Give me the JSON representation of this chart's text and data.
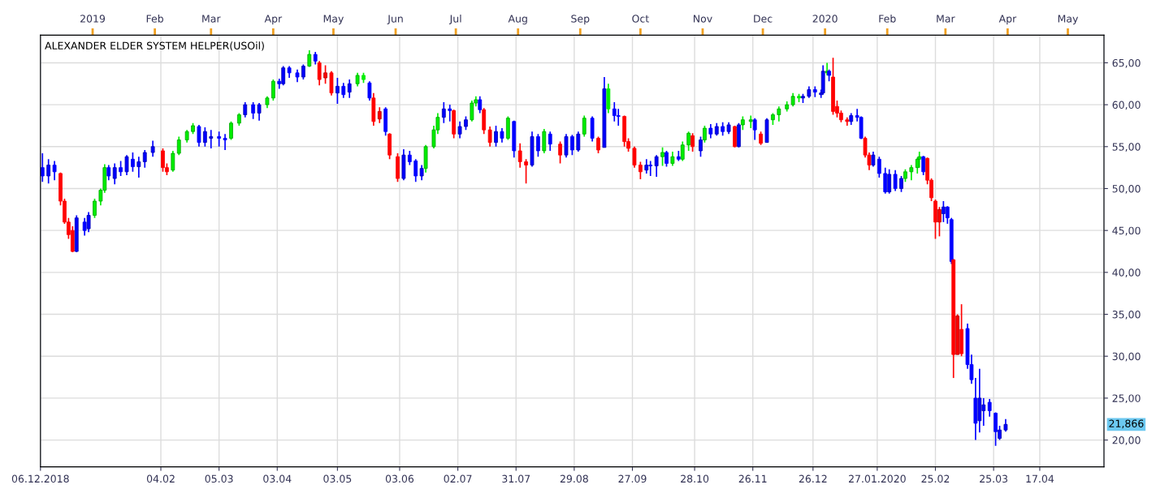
{
  "chart_data": {
    "type": "candlestick",
    "title": "ALEXANDER ELDER SYSTEM HELPER(USOil)",
    "x": [
      "2018-12-07",
      "2018-12-10",
      "2018-12-13",
      "2018-12-16",
      "2018-12-18",
      "2018-12-20",
      "2018-12-22",
      "2018-12-24",
      "2018-12-28",
      "2018-12-30",
      "2019-01-02",
      "2019-01-05",
      "2019-01-07",
      "2019-01-09",
      "2019-01-12",
      "2019-01-15",
      "2019-01-18",
      "2019-01-21",
      "2019-01-24",
      "2019-01-27",
      "2019-01-31",
      "2019-02-05",
      "2019-02-07",
      "2019-02-10",
      "2019-02-13",
      "2019-02-17",
      "2019-02-20",
      "2019-02-23",
      "2019-02-26",
      "2019-03-01",
      "2019-03-05",
      "2019-03-08",
      "2019-03-11",
      "2019-03-15",
      "2019-03-18",
      "2019-03-22",
      "2019-03-25",
      "2019-03-29",
      "2019-04-01",
      "2019-04-04",
      "2019-04-06",
      "2019-04-09",
      "2019-04-13",
      "2019-04-16",
      "2019-04-19",
      "2019-04-22",
      "2019-04-24",
      "2019-04-27",
      "2019-04-30",
      "2019-05-03",
      "2019-05-06",
      "2019-05-09",
      "2019-05-13",
      "2019-05-16",
      "2019-05-19",
      "2019-05-21",
      "2019-05-24",
      "2019-05-27",
      "2019-05-29",
      "2019-06-02",
      "2019-06-05",
      "2019-06-08",
      "2019-06-11",
      "2019-06-14",
      "2019-06-16",
      "2019-06-20",
      "2019-06-22",
      "2019-06-25",
      "2019-06-28",
      "2019-06-30",
      "2019-07-03",
      "2019-07-06",
      "2019-07-09",
      "2019-07-11",
      "2019-07-13",
      "2019-07-15",
      "2019-07-18",
      "2019-07-21",
      "2019-07-24",
      "2019-07-27",
      "2019-07-30",
      "2019-08-02",
      "2019-08-05",
      "2019-08-08",
      "2019-08-11",
      "2019-08-14",
      "2019-08-17",
      "2019-08-22",
      "2019-08-25",
      "2019-08-28",
      "2019-08-31",
      "2019-09-03",
      "2019-09-07",
      "2019-09-10",
      "2019-09-13",
      "2019-09-15",
      "2019-09-18",
      "2019-09-20",
      "2019-09-23",
      "2019-09-25",
      "2019-09-28",
      "2019-10-01",
      "2019-10-04",
      "2019-10-06",
      "2019-10-09",
      "2019-10-12",
      "2019-10-14",
      "2019-10-17",
      "2019-10-20",
      "2019-10-22",
      "2019-10-25",
      "2019-10-27",
      "2019-10-31",
      "2019-11-02",
      "2019-11-05",
      "2019-11-08",
      "2019-11-11",
      "2019-11-14",
      "2019-11-17",
      "2019-11-19",
      "2019-11-21",
      "2019-11-25",
      "2019-11-27",
      "2019-11-30",
      "2019-12-03",
      "2019-12-06",
      "2019-12-09",
      "2019-12-13",
      "2019-12-16",
      "2019-12-19",
      "2019-12-21",
      "2019-12-24",
      "2019-12-27",
      "2019-12-30",
      "2019-12-31",
      "2020-01-02",
      "2020-01-03",
      "2020-01-05",
      "2020-01-07",
      "2020-01-09",
      "2020-01-12",
      "2020-01-14",
      "2020-01-17",
      "2020-01-19",
      "2020-01-21",
      "2020-01-23",
      "2020-01-25",
      "2020-01-28",
      "2020-01-31",
      "2020-02-02",
      "2020-02-05",
      "2020-02-08",
      "2020-02-10",
      "2020-02-13",
      "2020-02-16",
      "2020-02-17",
      "2020-02-19",
      "2020-02-21",
      "2020-02-23",
      "2020-02-25",
      "2020-02-27",
      "2020-02-29",
      "2020-03-02",
      "2020-03-04",
      "2020-03-05",
      "2020-03-07",
      "2020-03-09",
      "2020-03-12",
      "2020-03-14",
      "2020-03-16",
      "2020-03-18",
      "2020-03-20",
      "2020-03-23",
      "2020-03-26",
      "2020-03-28",
      "2020-03-31"
    ],
    "ohlc": [
      [
        52.5,
        54.2,
        50.8,
        51.5
      ],
      [
        51.5,
        53.5,
        50.6,
        52.8
      ],
      [
        52.8,
        53.3,
        51.0,
        52.0
      ],
      [
        51.8,
        51.9,
        48.0,
        48.5
      ],
      [
        48.5,
        48.8,
        45.8,
        46.0
      ],
      [
        46.0,
        46.5,
        44.0,
        44.5
      ],
      [
        45.0,
        45.5,
        42.4,
        42.5
      ],
      [
        42.5,
        46.8,
        42.4,
        46.5
      ],
      [
        46.0,
        46.5,
        44.4,
        45.0
      ],
      [
        45.2,
        47.2,
        44.8,
        46.8
      ],
      [
        46.8,
        48.8,
        46.5,
        48.5
      ],
      [
        48.5,
        50.0,
        48.0,
        49.8
      ],
      [
        49.8,
        52.9,
        49.5,
        52.5
      ],
      [
        52.5,
        52.8,
        51.0,
        51.5
      ],
      [
        51.2,
        53.0,
        50.5,
        52.5
      ],
      [
        52.5,
        53.3,
        51.5,
        52.0
      ],
      [
        52.0,
        54.0,
        51.6,
        53.8
      ],
      [
        53.5,
        54.3,
        52.0,
        52.6
      ],
      [
        52.6,
        53.8,
        51.3,
        53.2
      ],
      [
        53.2,
        54.6,
        52.5,
        54.3
      ],
      [
        54.3,
        55.7,
        53.8,
        55.0
      ],
      [
        54.5,
        54.8,
        52.0,
        52.5
      ],
      [
        52.5,
        53.0,
        51.6,
        52.0
      ],
      [
        52.2,
        54.5,
        52.0,
        54.2
      ],
      [
        54.2,
        56.2,
        54.0,
        55.8
      ],
      [
        55.8,
        57.0,
        55.5,
        56.8
      ],
      [
        56.8,
        57.8,
        56.5,
        57.5
      ],
      [
        57.4,
        57.6,
        55.0,
        55.5
      ],
      [
        55.5,
        57.3,
        55.0,
        56.8
      ],
      [
        56.0,
        57.0,
        54.8,
        56.2
      ],
      [
        56.2,
        56.8,
        55.0,
        56.0
      ],
      [
        56.0,
        56.5,
        54.6,
        55.8
      ],
      [
        56.0,
        58.0,
        55.8,
        57.8
      ],
      [
        57.8,
        59.0,
        57.5,
        58.8
      ],
      [
        58.8,
        60.3,
        58.5,
        60.0
      ],
      [
        60.0,
        60.3,
        58.3,
        59.0
      ],
      [
        59.0,
        60.2,
        58.1,
        60.0
      ],
      [
        60.0,
        61.0,
        59.6,
        60.8
      ],
      [
        60.8,
        63.0,
        60.5,
        62.8
      ],
      [
        62.8,
        63.1,
        61.9,
        62.5
      ],
      [
        62.5,
        64.6,
        62.3,
        64.4
      ],
      [
        64.4,
        64.6,
        63.2,
        63.8
      ],
      [
        63.8,
        64.2,
        62.7,
        63.3
      ],
      [
        63.3,
        64.8,
        63.0,
        64.6
      ],
      [
        64.6,
        66.5,
        64.5,
        66.0
      ],
      [
        66.0,
        66.3,
        64.8,
        65.2
      ],
      [
        65.0,
        65.2,
        62.3,
        63.0
      ],
      [
        63.2,
        64.7,
        62.5,
        63.8
      ],
      [
        63.8,
        64.0,
        61.1,
        61.4
      ],
      [
        61.4,
        63.2,
        60.1,
        62.2
      ],
      [
        62.2,
        62.6,
        60.8,
        61.2
      ],
      [
        61.5,
        63.0,
        60.8,
        62.5
      ],
      [
        62.5,
        63.8,
        62.2,
        63.5
      ],
      [
        63.5,
        63.8,
        62.6,
        63.0
      ],
      [
        62.6,
        62.8,
        60.5,
        60.8
      ],
      [
        60.8,
        61.4,
        57.5,
        58.0
      ],
      [
        58.3,
        59.7,
        57.8,
        59.2
      ],
      [
        59.5,
        59.7,
        56.3,
        56.8
      ],
      [
        56.5,
        56.6,
        53.5,
        54.0
      ],
      [
        53.8,
        54.2,
        50.8,
        51.2
      ],
      [
        51.2,
        54.7,
        51.0,
        54.0
      ],
      [
        54.0,
        54.5,
        52.8,
        53.2
      ],
      [
        53.3,
        53.5,
        50.8,
        51.5
      ],
      [
        51.5,
        52.8,
        51.0,
        52.4
      ],
      [
        52.4,
        55.2,
        51.9,
        55.0
      ],
      [
        55.0,
        57.5,
        54.8,
        57.0
      ],
      [
        57.0,
        59.0,
        56.5,
        58.5
      ],
      [
        58.5,
        60.3,
        57.8,
        59.5
      ],
      [
        59.5,
        60.0,
        58.0,
        59.3
      ],
      [
        59.3,
        59.4,
        56.0,
        56.5
      ],
      [
        56.5,
        58.0,
        56.0,
        57.4
      ],
      [
        57.4,
        58.6,
        57.0,
        58.2
      ],
      [
        58.2,
        60.5,
        58.0,
        60.2
      ],
      [
        60.2,
        61.0,
        59.8,
        60.6
      ],
      [
        60.6,
        61.0,
        59.0,
        59.4
      ],
      [
        59.4,
        59.6,
        56.5,
        57.0
      ],
      [
        57.0,
        57.4,
        55.0,
        55.5
      ],
      [
        55.5,
        57.5,
        55.0,
        56.8
      ],
      [
        56.8,
        57.2,
        55.5,
        56.0
      ],
      [
        56.0,
        58.6,
        55.8,
        58.4
      ],
      [
        58.0,
        58.1,
        53.7,
        54.5
      ],
      [
        54.5,
        55.4,
        52.5,
        53.2
      ],
      [
        53.2,
        53.5,
        50.6,
        52.8
      ],
      [
        52.8,
        56.8,
        52.6,
        56.2
      ],
      [
        56.2,
        56.5,
        53.8,
        54.5
      ],
      [
        54.5,
        57.1,
        54.2,
        56.8
      ],
      [
        56.5,
        56.8,
        54.5,
        55.3
      ],
      [
        55.3,
        55.6,
        53.0,
        54.0
      ],
      [
        54.0,
        56.5,
        53.7,
        56.2
      ],
      [
        56.2,
        56.4,
        54.0,
        54.6
      ],
      [
        54.6,
        56.8,
        54.4,
        56.5
      ],
      [
        56.5,
        58.7,
        56.2,
        58.4
      ],
      [
        58.4,
        58.6,
        55.6,
        56.0
      ],
      [
        56.0,
        56.2,
        54.2,
        54.6
      ],
      [
        54.9,
        63.3,
        54.9,
        61.9
      ],
      [
        61.9,
        62.5,
        59.0,
        59.5
      ],
      [
        59.5,
        60.3,
        58.0,
        58.7
      ],
      [
        58.7,
        59.5,
        57.5,
        58.6
      ],
      [
        58.6,
        58.7,
        55.0,
        55.6
      ],
      [
        55.6,
        56.0,
        54.4,
        54.8
      ],
      [
        54.8,
        55.0,
        52.5,
        52.8
      ],
      [
        52.8,
        53.2,
        51.1,
        52.0
      ],
      [
        52.2,
        53.5,
        51.8,
        52.8
      ],
      [
        52.8,
        53.3,
        51.5,
        52.7
      ],
      [
        52.7,
        54.0,
        51.4,
        53.8
      ],
      [
        53.8,
        54.9,
        52.7,
        54.3
      ],
      [
        54.3,
        54.5,
        52.6,
        53.0
      ],
      [
        53.0,
        54.4,
        52.7,
        53.8
      ],
      [
        53.8,
        54.5,
        53.3,
        53.5
      ],
      [
        53.5,
        55.6,
        53.3,
        55.2
      ],
      [
        55.2,
        56.8,
        54.5,
        56.6
      ],
      [
        56.3,
        56.6,
        54.4,
        55.0
      ],
      [
        54.5,
        56.2,
        53.8,
        55.8
      ],
      [
        55.8,
        57.5,
        55.5,
        57.2
      ],
      [
        57.2,
        57.7,
        56.0,
        56.5
      ],
      [
        56.5,
        57.8,
        56.3,
        57.4
      ],
      [
        57.4,
        57.9,
        56.3,
        56.8
      ],
      [
        56.8,
        57.9,
        56.5,
        57.6
      ],
      [
        57.4,
        57.5,
        54.9,
        55.0
      ],
      [
        55.0,
        57.8,
        54.9,
        57.6
      ],
      [
        57.6,
        58.6,
        57.0,
        58.2
      ],
      [
        58.0,
        58.7,
        57.2,
        58.2
      ],
      [
        58.2,
        58.4,
        55.8,
        57.0
      ],
      [
        56.5,
        56.8,
        55.2,
        55.4
      ],
      [
        55.5,
        58.4,
        55.5,
        58.2
      ],
      [
        58.2,
        59.0,
        57.6,
        58.8
      ],
      [
        58.8,
        59.8,
        58.0,
        59.5
      ],
      [
        59.5,
        60.4,
        59.2,
        60.0
      ],
      [
        60.0,
        61.4,
        59.8,
        61.0
      ],
      [
        61.0,
        61.3,
        60.3,
        60.8
      ],
      [
        60.8,
        61.3,
        60.2,
        61.0
      ],
      [
        61.0,
        62.2,
        60.8,
        61.8
      ],
      [
        61.8,
        62.2,
        60.9,
        61.5
      ],
      [
        61.2,
        61.8,
        60.8,
        61.4
      ],
      [
        61.4,
        64.7,
        61.2,
        64.0
      ],
      [
        63.8,
        65.0,
        63.5,
        64.0
      ],
      [
        64.0,
        64.2,
        62.8,
        63.5
      ],
      [
        63.3,
        65.6,
        58.8,
        59.2
      ],
      [
        59.8,
        60.5,
        58.5,
        59.0
      ],
      [
        59.0,
        59.3,
        57.9,
        58.2
      ],
      [
        58.2,
        58.5,
        57.5,
        58.0
      ],
      [
        58.0,
        59.0,
        57.6,
        58.7
      ],
      [
        58.7,
        59.5,
        58.0,
        58.5
      ],
      [
        58.5,
        58.6,
        55.9,
        56.0
      ],
      [
        56.0,
        56.2,
        53.7,
        54.0
      ],
      [
        54.0,
        54.3,
        52.2,
        52.8
      ],
      [
        52.8,
        54.4,
        52.6,
        54.0
      ],
      [
        53.5,
        53.8,
        51.3,
        51.8
      ],
      [
        51.8,
        52.5,
        49.4,
        49.6
      ],
      [
        49.6,
        52.3,
        49.4,
        51.7
      ],
      [
        51.7,
        52.2,
        49.7,
        50.0
      ],
      [
        50.0,
        51.5,
        49.6,
        51.2
      ],
      [
        51.2,
        52.3,
        50.8,
        52.0
      ],
      [
        52.0,
        52.8,
        51.0,
        52.5
      ],
      [
        52.5,
        53.7,
        51.8,
        53.5
      ],
      [
        53.5,
        54.4,
        52.5,
        53.8
      ],
      [
        53.8,
        53.9,
        51.6,
        52.0
      ],
      [
        53.6,
        53.7,
        50.5,
        51.0
      ],
      [
        51.0,
        51.2,
        48.5,
        48.9
      ],
      [
        48.5,
        48.7,
        44.0,
        46.0
      ],
      [
        46.0,
        47.8,
        44.3,
        47.5
      ],
      [
        47.0,
        48.5,
        46.0,
        47.8
      ],
      [
        47.8,
        47.9,
        45.8,
        46.5
      ],
      [
        46.3,
        46.5,
        41.0,
        41.3
      ],
      [
        41.5,
        41.6,
        27.4,
        30.2
      ],
      [
        30.2,
        35.0,
        30.2,
        34.8
      ],
      [
        33.2,
        36.2,
        30.0,
        30.3
      ],
      [
        33.3,
        33.9,
        28.5,
        29.0
      ],
      [
        29.0,
        30.2,
        26.7,
        27.2
      ],
      [
        25.0,
        27.4,
        20.0,
        22.0
      ],
      [
        22.3,
        28.5,
        20.9,
        25.0
      ],
      [
        23.5,
        25.0,
        21.7,
        24.2
      ],
      [
        24.5,
        24.9,
        22.8,
        23.5
      ],
      [
        23.2,
        23.3,
        19.3,
        21.0
      ],
      [
        20.2,
        21.7,
        20.0,
        21.2
      ],
      [
        21.2,
        22.5,
        21.0,
        21.866
      ]
    ],
    "colors": [
      "#0000ff",
      "#0000ff",
      "#0000ff",
      "#ff0000",
      "#ff0000",
      "#ff0000",
      "#ff0000",
      "#0000ff",
      "#0000ff",
      "#0000ff",
      "#00ee00",
      "#00ee00",
      "#00ee00",
      "#0000ff",
      "#0000ff",
      "#0000ff",
      "#0000ff",
      "#0000ff",
      "#0000ff",
      "#0000ff",
      "#0000ff",
      "#ff0000",
      "#ff0000",
      "#00ee00",
      "#00ee00",
      "#00ee00",
      "#00ee00",
      "#0000ff",
      "#0000ff",
      "#0000ff",
      "#0000ff",
      "#0000ff",
      "#00ee00",
      "#00ee00",
      "#0000ff",
      "#0000ff",
      "#0000ff",
      "#00ee00",
      "#00ee00",
      "#0000ff",
      "#0000ff",
      "#0000ff",
      "#0000ff",
      "#0000ff",
      "#00ee00",
      "#0000ff",
      "#ff0000",
      "#ff0000",
      "#ff0000",
      "#0000ff",
      "#0000ff",
      "#0000ff",
      "#00ee00",
      "#00ee00",
      "#0000ff",
      "#ff0000",
      "#ff0000",
      "#0000ff",
      "#ff0000",
      "#ff0000",
      "#0000ff",
      "#0000ff",
      "#0000ff",
      "#0000ff",
      "#00ee00",
      "#00ee00",
      "#00ee00",
      "#0000ff",
      "#0000ff",
      "#ff0000",
      "#0000ff",
      "#0000ff",
      "#00ee00",
      "#00ee00",
      "#0000ff",
      "#ff0000",
      "#ff0000",
      "#0000ff",
      "#0000ff",
      "#00ee00",
      "#0000ff",
      "#ff0000",
      "#ff0000",
      "#0000ff",
      "#0000ff",
      "#00ee00",
      "#0000ff",
      "#ff0000",
      "#0000ff",
      "#0000ff",
      "#0000ff",
      "#00ee00",
      "#0000ff",
      "#ff0000",
      "#0000ff",
      "#00ee00",
      "#0000ff",
      "#0000ff",
      "#ff0000",
      "#ff0000",
      "#ff0000",
      "#ff0000",
      "#0000ff",
      "#0000ff",
      "#0000ff",
      "#00ee00",
      "#0000ff",
      "#00ee00",
      "#0000ff",
      "#00ee00",
      "#00ee00",
      "#ff0000",
      "#0000ff",
      "#00ee00",
      "#0000ff",
      "#0000ff",
      "#0000ff",
      "#0000ff",
      "#ff0000",
      "#0000ff",
      "#00ee00",
      "#00ee00",
      "#0000ff",
      "#ff0000",
      "#0000ff",
      "#00ee00",
      "#00ee00",
      "#00ee00",
      "#00ee00",
      "#00ee00",
      "#0000ff",
      "#0000ff",
      "#0000ff",
      "#0000ff",
      "#0000ff",
      "#00ee00",
      "#0000ff",
      "#ff0000",
      "#ff0000",
      "#ff0000",
      "#ff0000",
      "#0000ff",
      "#0000ff",
      "#0000ff",
      "#ff0000",
      "#ff0000",
      "#0000ff",
      "#0000ff",
      "#0000ff",
      "#0000ff",
      "#0000ff",
      "#0000ff",
      "#00ee00",
      "#00ee00",
      "#00ee00",
      "#00ee00",
      "#0000ff",
      "#ff0000",
      "#ff0000",
      "#ff0000",
      "#ff0000",
      "#0000ff",
      "#0000ff",
      "#0000ff",
      "#ff0000",
      "#ff0000",
      "#ff0000",
      "#0000ff",
      "#0000ff",
      "#0000ff",
      "#0000ff",
      "#0000ff",
      "#0000ff",
      "#0000ff",
      "#0000ff",
      "#0000ff"
    ],
    "xlim": [
      "2018-12-06",
      "2020-05-19"
    ],
    "xticks": [
      {
        "value": "2018-12-06",
        "label": "06.12.2018"
      },
      {
        "value": "2019-02-04",
        "label": "04.02"
      },
      {
        "value": "2019-03-05",
        "label": "05.03"
      },
      {
        "value": "2019-04-03",
        "label": "03.04"
      },
      {
        "value": "2019-05-03",
        "label": "03.05"
      },
      {
        "value": "2019-06-03",
        "label": "03.06"
      },
      {
        "value": "2019-07-02",
        "label": "02.07"
      },
      {
        "value": "2019-07-31",
        "label": "31.07"
      },
      {
        "value": "2019-08-29",
        "label": "29.08"
      },
      {
        "value": "2019-09-27",
        "label": "27.09"
      },
      {
        "value": "2019-10-28",
        "label": "28.10"
      },
      {
        "value": "2019-11-26",
        "label": "26.11"
      },
      {
        "value": "2019-12-26",
        "label": "26.12"
      },
      {
        "value": "2020-01-27",
        "label": "27.01.2020"
      },
      {
        "value": "2020-02-25",
        "label": "25.02"
      },
      {
        "value": "2020-03-25",
        "label": "25.03"
      },
      {
        "value": "2020-04-17",
        "label": "17.04"
      }
    ],
    "x2lim": [
      "2018-12-06",
      "2020-05-19"
    ],
    "x2ticks": [
      {
        "value": "2019-01-01",
        "label": "2019"
      },
      {
        "value": "2019-02-01",
        "label": "Feb"
      },
      {
        "value": "2019-03-01",
        "label": "Mar"
      },
      {
        "value": "2019-04-01",
        "label": "Apr"
      },
      {
        "value": "2019-05-01",
        "label": "May"
      },
      {
        "value": "2019-06-01",
        "label": "Jun"
      },
      {
        "value": "2019-07-01",
        "label": "Jul"
      },
      {
        "value": "2019-08-01",
        "label": "Aug"
      },
      {
        "value": "2019-09-01",
        "label": "Sep"
      },
      {
        "value": "2019-10-01",
        "label": "Oct"
      },
      {
        "value": "2019-11-01",
        "label": "Nov"
      },
      {
        "value": "2019-12-01",
        "label": "Dec"
      },
      {
        "value": "2020-01-01",
        "label": "2020"
      },
      {
        "value": "2020-02-01",
        "label": "Feb"
      },
      {
        "value": "2020-03-01",
        "label": "Mar"
      },
      {
        "value": "2020-04-01",
        "label": "Apr"
      },
      {
        "value": "2020-05-01",
        "label": "May"
      }
    ],
    "ylim": [
      16.8,
      68.3
    ],
    "yticks": [
      {
        "value": 20,
        "label": "20,00"
      },
      {
        "value": 25,
        "label": "25,00"
      },
      {
        "value": 30,
        "label": "30,00"
      },
      {
        "value": 35,
        "label": "35,00"
      },
      {
        "value": 40,
        "label": "40,00"
      },
      {
        "value": 45,
        "label": "45,00"
      },
      {
        "value": 50,
        "label": "50,00"
      },
      {
        "value": 55,
        "label": "55,00"
      },
      {
        "value": 60,
        "label": "60,00"
      },
      {
        "value": 65,
        "label": "65,00"
      }
    ],
    "grid": true,
    "annotations": [
      "21,866"
    ]
  }
}
